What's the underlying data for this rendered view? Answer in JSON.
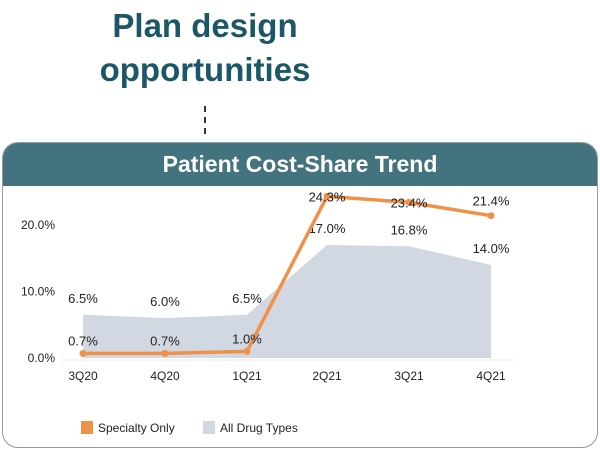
{
  "heading": "Plan design opportunities",
  "chart_data": {
    "type": "line",
    "title": "Patient Cost-Share Trend",
    "categories": [
      "3Q20",
      "4Q20",
      "1Q21",
      "2Q21",
      "3Q21",
      "4Q21"
    ],
    "ylim": [
      0,
      25
    ],
    "yticks": [
      "0.0%",
      "10.0%",
      "20.0%"
    ],
    "ytick_values": [
      0,
      10,
      20
    ],
    "grid": false,
    "legend_position": "bottom-left",
    "series": [
      {
        "name": "Specialty Only",
        "type": "line",
        "color": "#f0914a",
        "values": [
          0.7,
          0.7,
          1.0,
          24.3,
          23.4,
          21.4
        ],
        "labels": [
          "0.7%",
          "0.7%",
          "1.0%",
          "24.3%",
          "23.4%",
          "21.4%"
        ]
      },
      {
        "name": "All Drug Types",
        "type": "area",
        "color": "#d2d8e1",
        "values": [
          6.5,
          6.0,
          6.5,
          17.0,
          16.8,
          14.0
        ],
        "labels": [
          "6.5%",
          "6.0%",
          "6.5%",
          "17.0%",
          "16.8%",
          "14.0%"
        ]
      }
    ]
  }
}
